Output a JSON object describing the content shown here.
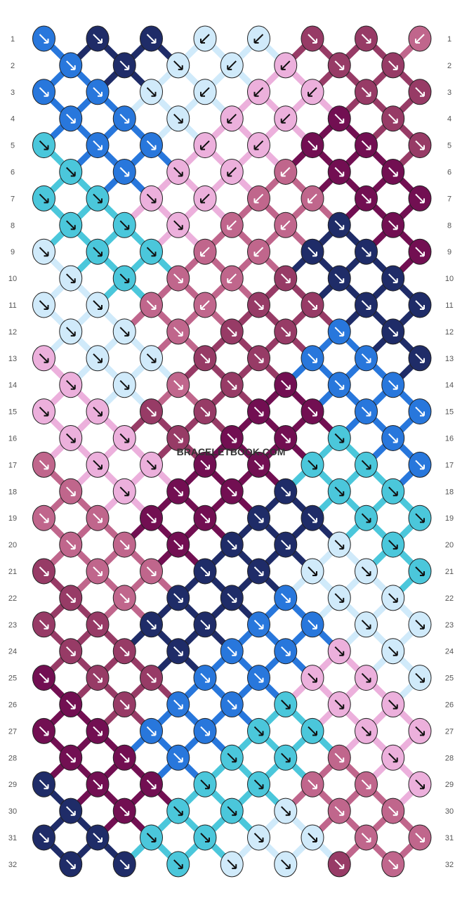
{
  "watermark": "BRACELETBOOK.COM",
  "colors": {
    "A": "#ecb0dc",
    "B": "#c0668c",
    "C": "#973b66",
    "D": "#720f52",
    "E": "#1f2c68",
    "F": "#2877dc",
    "G": "#4bc7db",
    "H": "#d0eafa"
  },
  "strand_labels": [
    "F",
    "F",
    "E",
    "G",
    "E",
    "G",
    "D",
    "H",
    "D",
    "H",
    "C",
    "A",
    "C",
    "A",
    "B",
    "B"
  ],
  "row_numbers": [
    "1",
    "2",
    "3",
    "4",
    "5",
    "6",
    "7",
    "8",
    "9",
    "10",
    "11",
    "12",
    "13",
    "14",
    "15",
    "16",
    "17",
    "18",
    "19",
    "20",
    "21",
    "22",
    "23",
    "24",
    "25",
    "26",
    "27",
    "28",
    "29",
    "30",
    "31",
    "32"
  ],
  "rows": [
    [
      "F",
      "E",
      "E",
      "H",
      "H",
      "C",
      "C",
      "B"
    ],
    [
      "F",
      "E",
      "H",
      "H",
      "A",
      "C",
      "C"
    ],
    [
      "F",
      "F",
      "H",
      "H",
      "A",
      "A",
      "C",
      "C"
    ],
    [
      "F",
      "F",
      "H",
      "A",
      "A",
      "D",
      "C"
    ],
    [
      "G",
      "F",
      "F",
      "A",
      "A",
      "D",
      "D",
      "C"
    ],
    [
      "G",
      "F",
      "A",
      "A",
      "B",
      "D",
      "D"
    ],
    [
      "G",
      "G",
      "A",
      "A",
      "B",
      "B",
      "D",
      "D"
    ],
    [
      "G",
      "G",
      "A",
      "B",
      "B",
      "E",
      "D"
    ],
    [
      "H",
      "G",
      "G",
      "B",
      "B",
      "E",
      "E",
      "D"
    ],
    [
      "H",
      "G",
      "B",
      "B",
      "C",
      "E",
      "E"
    ],
    [
      "H",
      "H",
      "B",
      "B",
      "C",
      "C",
      "E",
      "E"
    ],
    [
      "H",
      "H",
      "B",
      "C",
      "C",
      "F",
      "E"
    ],
    [
      "A",
      "H",
      "H",
      "C",
      "C",
      "F",
      "F",
      "E"
    ],
    [
      "A",
      "H",
      "B",
      "C",
      "D",
      "F",
      "F"
    ],
    [
      "A",
      "A",
      "C",
      "C",
      "D",
      "D",
      "F",
      "F"
    ],
    [
      "A",
      "A",
      "C",
      "D",
      "D",
      "G",
      "F"
    ],
    [
      "B",
      "A",
      "A",
      "D",
      "D",
      "G",
      "G",
      "F"
    ],
    [
      "B",
      "A",
      "D",
      "D",
      "E",
      "G",
      "G"
    ],
    [
      "B",
      "B",
      "D",
      "D",
      "E",
      "E",
      "G",
      "G"
    ],
    [
      "B",
      "B",
      "D",
      "E",
      "E",
      "H",
      "G"
    ],
    [
      "C",
      "B",
      "B",
      "E",
      "E",
      "H",
      "H",
      "G"
    ],
    [
      "C",
      "B",
      "E",
      "E",
      "F",
      "H",
      "H"
    ],
    [
      "C",
      "C",
      "E",
      "E",
      "F",
      "F",
      "H",
      "H"
    ],
    [
      "C",
      "C",
      "E",
      "F",
      "F",
      "A",
      "H"
    ],
    [
      "D",
      "C",
      "C",
      "F",
      "F",
      "A",
      "A",
      "H"
    ],
    [
      "D",
      "C",
      "F",
      "F",
      "G",
      "A",
      "A"
    ],
    [
      "D",
      "D",
      "F",
      "F",
      "G",
      "G",
      "A",
      "A"
    ],
    [
      "D",
      "D",
      "F",
      "G",
      "G",
      "B",
      "A"
    ],
    [
      "E",
      "D",
      "D",
      "G",
      "G",
      "B",
      "B",
      "A"
    ],
    [
      "E",
      "D",
      "G",
      "G",
      "H",
      "B",
      "B"
    ],
    [
      "E",
      "E",
      "G",
      "G",
      "H",
      "H",
      "B",
      "B"
    ],
    [
      "E",
      "E",
      "G",
      "H",
      "H",
      "C",
      "B"
    ]
  ]
}
